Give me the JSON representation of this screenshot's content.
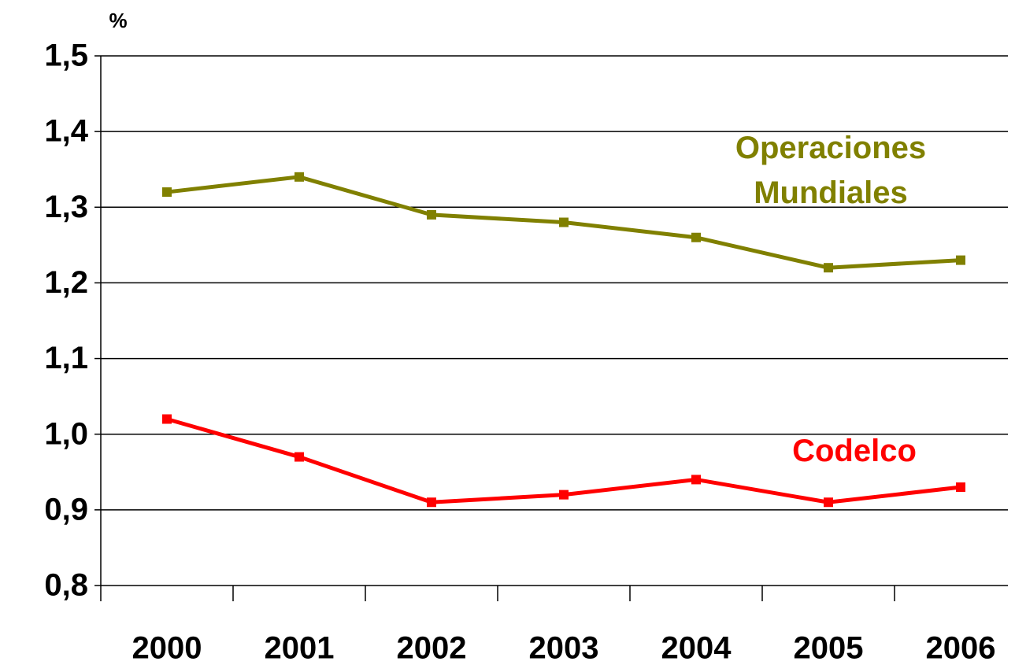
{
  "chart_data": {
    "type": "line",
    "y_axis_label": "%",
    "categories": [
      "2000",
      "2001",
      "2002",
      "2003",
      "2004",
      "2005",
      "2006"
    ],
    "series": [
      {
        "name": "Operaciones Mundiales",
        "color": "#808000",
        "values": [
          1.32,
          1.34,
          1.29,
          1.28,
          1.26,
          1.22,
          1.23
        ]
      },
      {
        "name": "Codelco",
        "color": "#ff0000",
        "values": [
          1.02,
          0.97,
          0.91,
          0.92,
          0.94,
          0.91,
          0.93
        ]
      }
    ],
    "ylim": [
      0.8,
      1.5
    ],
    "yticks": [
      {
        "value": 0.8,
        "label": "0,8"
      },
      {
        "value": 0.9,
        "label": "0,9"
      },
      {
        "value": 1.0,
        "label": "1,0"
      },
      {
        "value": 1.1,
        "label": "1,1"
      },
      {
        "value": 1.2,
        "label": "1,2"
      },
      {
        "value": 1.3,
        "label": "1,3"
      },
      {
        "value": 1.4,
        "label": "1,4"
      },
      {
        "value": 1.5,
        "label": "1,5"
      }
    ],
    "grid": true
  }
}
